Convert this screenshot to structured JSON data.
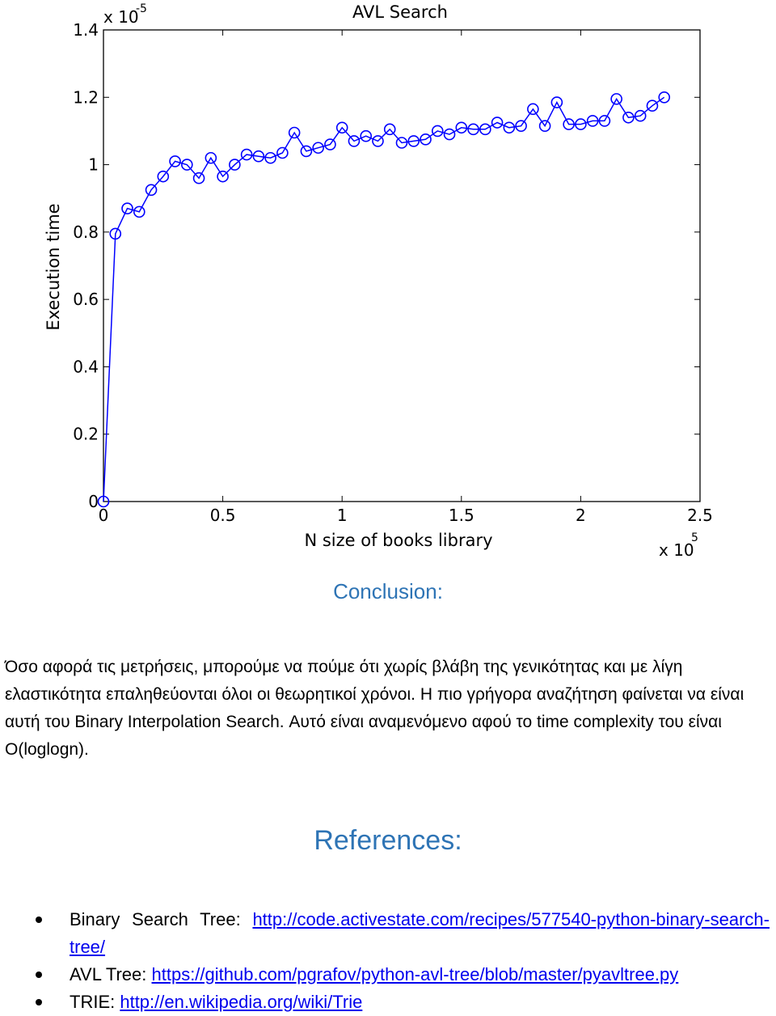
{
  "chart_data": {
    "type": "line",
    "title": "AVL Search",
    "xlabel": "N size of books library",
    "ylabel": "Execution time",
    "x_multiplier_label": "x 10",
    "x_multiplier_exp": "5",
    "y_multiplier_label": "x 10",
    "y_multiplier_exp": "-5",
    "xlim": [
      0,
      2.5
    ],
    "ylim": [
      0,
      1.4
    ],
    "x_ticks": [
      "0",
      "0.5",
      "1",
      "1.5",
      "2",
      "2.5"
    ],
    "y_ticks": [
      "0",
      "0.2",
      "0.4",
      "0.6",
      "0.8",
      "1",
      "1.2",
      "1.4"
    ],
    "grid": false,
    "color": "#0000ff",
    "marker": "circle",
    "series": [
      {
        "x": [
          0.0,
          0.05,
          0.1,
          0.15,
          0.2,
          0.25,
          0.3,
          0.35,
          0.4,
          0.45,
          0.5,
          0.55,
          0.6,
          0.65,
          0.7,
          0.75,
          0.8,
          0.85,
          0.9,
          0.95,
          1.0,
          1.05,
          1.1,
          1.15,
          1.2,
          1.25,
          1.3,
          1.35,
          1.4,
          1.45,
          1.5,
          1.55,
          1.6,
          1.65,
          1.7,
          1.75,
          1.8,
          1.85,
          1.9,
          1.95,
          2.0,
          2.05,
          2.1,
          2.15,
          2.2,
          2.25,
          2.3,
          2.35
        ],
        "y": [
          0.0,
          0.795,
          0.87,
          0.86,
          0.925,
          0.965,
          1.01,
          1.0,
          0.96,
          1.02,
          0.965,
          1.0,
          1.03,
          1.025,
          1.02,
          1.035,
          1.095,
          1.04,
          1.05,
          1.06,
          1.11,
          1.07,
          1.085,
          1.07,
          1.105,
          1.065,
          1.07,
          1.075,
          1.1,
          1.09,
          1.11,
          1.105,
          1.105,
          1.125,
          1.11,
          1.115,
          1.165,
          1.115,
          1.185,
          1.12,
          1.12,
          1.13,
          1.13,
          1.195,
          1.14,
          1.145,
          1.175,
          1.2
        ]
      }
    ]
  },
  "conclusion": {
    "heading": "Conclusion:",
    "paragraph": "Όσο αφορά τις μετρήσεις, μπορούμε να πούμε ότι χωρίς βλάβη της γενικότητας και με λίγη ελαστικότητα επαληθεύονται όλοι οι θεωρητικοί χρόνοι. Η πιο γρήγορα αναζήτηση φαίνεται να είναι αυτή του Binary Interpolation Search. Αυτό είναι αναμενόμενο αφού το time complexity του είναι O(loglogn)."
  },
  "references": {
    "heading": "References:",
    "items": [
      {
        "label": "Binary Search Tree: ",
        "link": "http://code.activestate.com/recipes/577540-python-binary-search-tree/"
      },
      {
        "label": "AVL Tree: ",
        "link": "https://github.com/pgrafov/python-avl-tree/blob/master/pyavltree.py"
      },
      {
        "label": "TRIE: ",
        "link": "http://en.wikipedia.org/wiki/Trie"
      }
    ]
  }
}
